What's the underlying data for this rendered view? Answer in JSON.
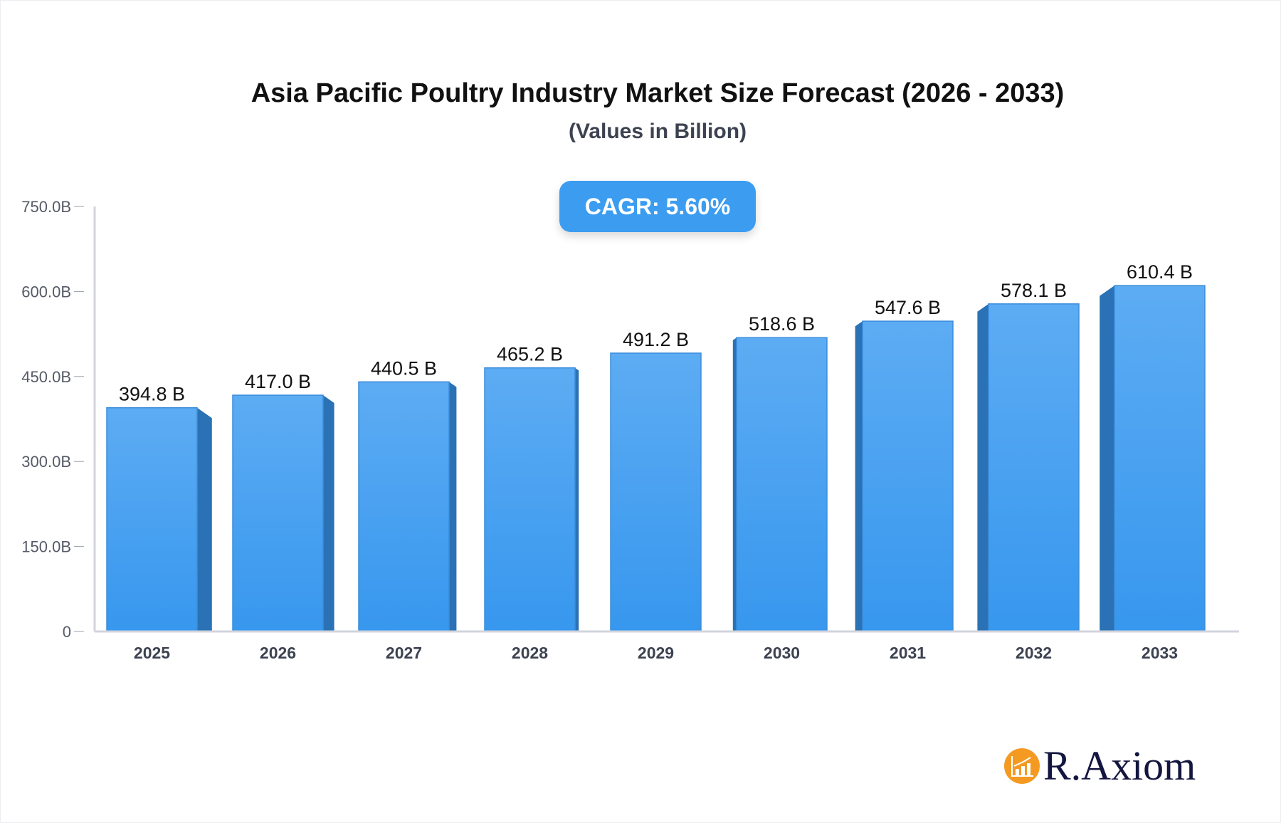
{
  "chart_data": {
    "type": "bar",
    "title": "Asia Pacific Poultry Industry Market Size Forecast (2026 - 2033)",
    "subtitle": "(Values in Billion)",
    "annotation": "CAGR: 5.60%",
    "categories": [
      "2025",
      "2026",
      "2027",
      "2028",
      "2029",
      "2030",
      "2031",
      "2032",
      "2033"
    ],
    "values": [
      394.8,
      417.0,
      440.5,
      465.2,
      491.2,
      518.6,
      547.6,
      578.1,
      610.4
    ],
    "data_labels": [
      "394.8 B",
      "417.0 B",
      "440.5 B",
      "465.2 B",
      "491.2 B",
      "518.6 B",
      "547.6 B",
      "578.1 B",
      "610.4 B"
    ],
    "ylim": [
      0,
      750
    ],
    "yticks": [
      0,
      150,
      300,
      450,
      600,
      750
    ],
    "ytick_labels": [
      "0",
      "150.0B",
      "300.0B",
      "450.0B",
      "600.0B",
      "750.0B"
    ],
    "xlabel": "",
    "ylabel": "",
    "grid": false,
    "colors": {
      "bar_top": "#5dacf3",
      "bar_bottom": "#3797ee",
      "bar_side": "#2a72b5",
      "axis": "#d1d4dc",
      "badge": "#3b9cf0"
    }
  },
  "logo": {
    "text": "R.Axiom",
    "color": "#f49a22"
  }
}
